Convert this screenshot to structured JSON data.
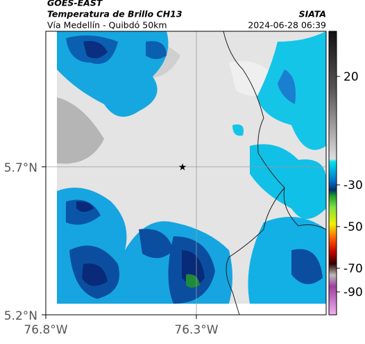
{
  "header": {
    "satellite": "GOES-EAST",
    "title": "Temperatura de Brillo CH13",
    "source": "SIATA",
    "route": "Vía Medellín - Quibdó 50km",
    "datetime": "2024-06-28 06:39"
  },
  "axes": {
    "y_labels": [
      "5.7°N",
      "5.2°N"
    ],
    "x_labels": [
      "76.8°W",
      "76.3°W"
    ]
  },
  "colorbar": {
    "labels": [
      "20",
      "-30",
      "-50",
      "-70",
      "-90"
    ]
  }
}
